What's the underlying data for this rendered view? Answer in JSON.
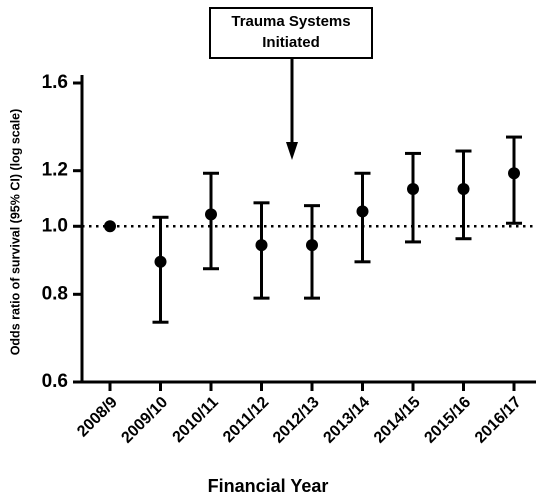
{
  "chart_data": {
    "type": "errorbar",
    "annotation": [
      "Trauma Systems",
      "Initiated"
    ],
    "x_label": "Financial Year",
    "y_label": "Odds ratio of survival (95% CI)  (log scale)",
    "categories": [
      "2008/9",
      "2009/10",
      "2010/11",
      "2011/12",
      "2012/13",
      "2013/14",
      "2014/15",
      "2015/16",
      "2016/17"
    ],
    "series": [
      {
        "color": "#000000",
        "values": [
          1.0,
          0.89,
          1.04,
          0.94,
          0.94,
          1.05,
          1.13,
          1.13,
          1.19
        ],
        "lower": [
          null,
          0.73,
          0.87,
          0.79,
          0.79,
          0.89,
          0.95,
          0.96,
          1.01
        ],
        "upper": [
          null,
          1.03,
          1.19,
          1.08,
          1.07,
          1.19,
          1.27,
          1.28,
          1.34
        ]
      }
    ],
    "ylim": [
      0.6,
      1.6
    ],
    "yticks": [
      0.6,
      0.8,
      {
        "value": 1,
        "label": "1.0"
      },
      1.2,
      1.6
    ],
    "log_scale": true,
    "reference_line": 1
  }
}
